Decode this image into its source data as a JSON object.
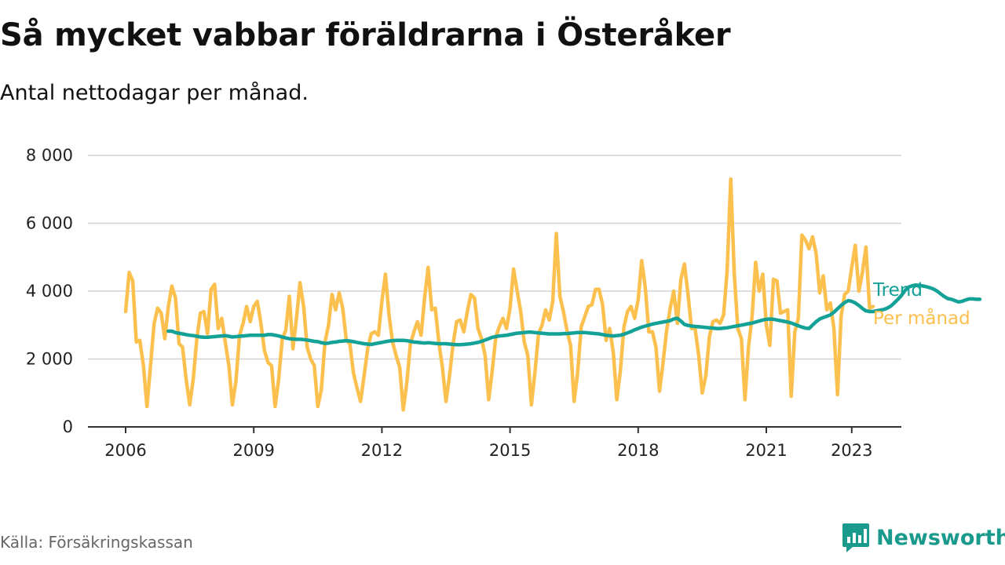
{
  "header": {
    "title": "Så mycket vabbar föräldrarna i Österåker",
    "subtitle": "Antal nettodagar per månad."
  },
  "footer": {
    "source": "Källa: Försäkringskassan",
    "brand": "Newsworthy"
  },
  "colors": {
    "monthly": "#fbc04e",
    "trend": "#14a197",
    "grid": "#d4d4d4",
    "axis": "#333333",
    "brand": "#1a9a8c"
  },
  "chart_data": {
    "type": "line",
    "ylim": [
      0,
      8000
    ],
    "xlim": [
      2006.0,
      2024.0
    ],
    "y_ticks": [
      0,
      2000,
      4000,
      6000,
      8000
    ],
    "y_tick_labels": [
      "0",
      "2 000",
      "4 000",
      "6 000",
      "8 000"
    ],
    "x_ticks": [
      2006,
      2009,
      2012,
      2015,
      2018,
      2021,
      2023
    ],
    "x_tick_labels": [
      "2006",
      "2009",
      "2012",
      "2015",
      "2018",
      "2021",
      "2023"
    ],
    "grid": true,
    "legend": "inline labels at right end of lines",
    "series": [
      {
        "name": "Per månad",
        "x_start": "2006-01",
        "step": "month",
        "values": [
          3400,
          4550,
          4300,
          2500,
          2550,
          1800,
          600,
          1800,
          3050,
          3500,
          3350,
          2600,
          3550,
          4150,
          3800,
          2450,
          2350,
          1400,
          650,
          1400,
          2600,
          3350,
          3400,
          2750,
          4050,
          4200,
          2900,
          3200,
          2500,
          1800,
          650,
          1350,
          2700,
          3050,
          3550,
          3100,
          3550,
          3700,
          3050,
          2250,
          1900,
          1800,
          600,
          1400,
          2600,
          2850,
          3850,
          2300,
          3200,
          4250,
          3550,
          2350,
          2000,
          1800,
          600,
          1100,
          2500,
          3000,
          3900,
          3450,
          3950,
          3500,
          2550,
          2450,
          1600,
          1150,
          750,
          1500,
          2300,
          2750,
          2800,
          2700,
          3700,
          4500,
          3300,
          2500,
          2100,
          1750,
          500,
          1300,
          2450,
          2800,
          3100,
          2700,
          3800,
          4700,
          3450,
          3500,
          2500,
          1750,
          750,
          1500,
          2450,
          3100,
          3150,
          2800,
          3400,
          3900,
          3800,
          2900,
          2600,
          2100,
          800,
          1650,
          2650,
          2950,
          3200,
          2900,
          3500,
          4650,
          4000,
          3400,
          2500,
          2100,
          650,
          1600,
          2750,
          3000,
          3450,
          3150,
          3700,
          5700,
          3850,
          3400,
          2850,
          2400,
          750,
          1600,
          2950,
          3250,
          3550,
          3600,
          4050,
          4050,
          3600,
          2550,
          2900,
          2200,
          800,
          1650,
          2950,
          3400,
          3550,
          3200,
          3750,
          4900,
          4100,
          2800,
          2800,
          2350,
          1050,
          1900,
          2850,
          3500,
          4000,
          3050,
          4350,
          4800,
          3900,
          2900,
          2900,
          2100,
          1000,
          1500,
          2650,
          3100,
          3150,
          3050,
          3300,
          4600,
          7300,
          4500,
          2900,
          2600,
          800,
          2350,
          3250,
          4850,
          4000,
          4500,
          3000,
          2400,
          4350,
          4300,
          3350,
          3400,
          3450,
          900,
          2800,
          3200,
          5650,
          5500,
          5250,
          5600,
          5100,
          3950,
          4450,
          3450,
          3650,
          2900,
          950,
          3250,
          3900,
          4000,
          4700,
          5350,
          4000,
          4550,
          5300,
          3500,
          3550
        ]
      },
      {
        "name": "Trend",
        "x_start": "2007-01",
        "step": "month",
        "values": [
          2820,
          2820,
          2780,
          2760,
          2740,
          2720,
          2700,
          2690,
          2670,
          2650,
          2640,
          2640,
          2650,
          2660,
          2670,
          2680,
          2690,
          2670,
          2650,
          2660,
          2670,
          2680,
          2690,
          2700,
          2700,
          2700,
          2700,
          2700,
          2720,
          2720,
          2700,
          2680,
          2650,
          2620,
          2600,
          2590,
          2580,
          2580,
          2570,
          2560,
          2540,
          2520,
          2510,
          2480,
          2460,
          2470,
          2490,
          2500,
          2520,
          2530,
          2540,
          2530,
          2510,
          2490,
          2470,
          2450,
          2440,
          2430,
          2450,
          2470,
          2490,
          2510,
          2530,
          2540,
          2550,
          2550,
          2550,
          2540,
          2520,
          2500,
          2490,
          2480,
          2470,
          2480,
          2470,
          2460,
          2450,
          2450,
          2450,
          2440,
          2430,
          2420,
          2420,
          2430,
          2440,
          2450,
          2470,
          2490,
          2520,
          2560,
          2600,
          2640,
          2660,
          2680,
          2690,
          2700,
          2720,
          2740,
          2760,
          2770,
          2780,
          2790,
          2790,
          2780,
          2770,
          2760,
          2750,
          2740,
          2740,
          2740,
          2740,
          2750,
          2750,
          2760,
          2770,
          2780,
          2780,
          2780,
          2770,
          2760,
          2750,
          2740,
          2720,
          2700,
          2690,
          2680,
          2690,
          2700,
          2730,
          2770,
          2810,
          2860,
          2900,
          2940,
          2970,
          3000,
          3030,
          3050,
          3070,
          3090,
          3110,
          3130,
          3180,
          3200,
          3120,
          3020,
          2990,
          2970,
          2960,
          2950,
          2940,
          2930,
          2920,
          2910,
          2900,
          2900,
          2910,
          2920,
          2940,
          2960,
          2980,
          3000,
          3020,
          3040,
          3060,
          3090,
          3120,
          3150,
          3170,
          3180,
          3170,
          3150,
          3130,
          3110,
          3090,
          3060,
          3020,
          2980,
          2940,
          2910,
          2900,
          3000,
          3100,
          3180,
          3220,
          3260,
          3300,
          3380,
          3480,
          3580,
          3660,
          3720,
          3700,
          3650,
          3580,
          3490,
          3420,
          3400,
          3400,
          3420,
          3440,
          3460,
          3500,
          3560,
          3660,
          3760,
          3880,
          4020,
          4120,
          4160,
          4180,
          4170,
          4150,
          4130,
          4100,
          4060,
          4000,
          3920,
          3840,
          3780,
          3760,
          3720,
          3680,
          3700,
          3740,
          3770,
          3770,
          3760,
          3760
        ]
      }
    ]
  }
}
